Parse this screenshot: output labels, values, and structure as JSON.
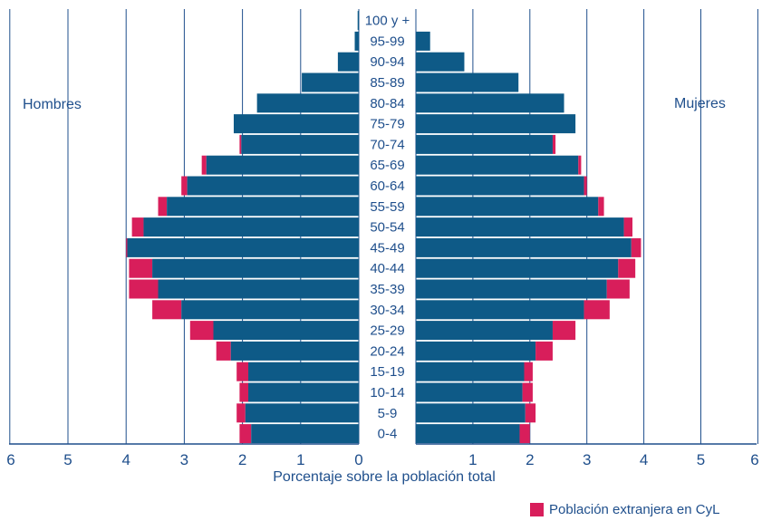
{
  "chart_data": {
    "type": "bar",
    "subtype": "population-pyramid",
    "xlabel": "Porcentaje sobre la población total",
    "left_label": "Hombres",
    "right_label": "Mujeres",
    "xlim": [
      0,
      6
    ],
    "ticks": [
      6,
      5,
      4,
      3,
      2,
      1,
      0,
      1,
      2,
      3,
      4,
      5,
      6
    ],
    "categories": [
      "0-4",
      "5-9",
      "10-14",
      "15-19",
      "20-24",
      "25-29",
      "30-34",
      "35-39",
      "40-44",
      "45-49",
      "50-54",
      "55-59",
      "60-64",
      "65-69",
      "70-74",
      "75-79",
      "80-84",
      "85-89",
      "90-94",
      "95-99",
      "100 y +"
    ],
    "series": [
      {
        "name": "Hombres",
        "total": [
          2.05,
          2.1,
          2.05,
          2.1,
          2.45,
          2.9,
          3.55,
          3.95,
          3.95,
          4.0,
          3.9,
          3.45,
          3.05,
          2.7,
          2.05,
          2.15,
          1.75,
          0.98,
          0.36,
          0.07,
          0.02
        ],
        "native": [
          1.85,
          1.95,
          1.9,
          1.9,
          2.2,
          2.5,
          3.05,
          3.45,
          3.55,
          3.98,
          3.7,
          3.3,
          2.95,
          2.62,
          2.02,
          2.15,
          1.75,
          0.98,
          0.36,
          0.07,
          0.02
        ]
      },
      {
        "name": "Mujeres",
        "total": [
          2.0,
          2.1,
          2.05,
          2.05,
          2.4,
          2.8,
          3.4,
          3.75,
          3.85,
          3.95,
          3.8,
          3.3,
          3.0,
          2.9,
          2.45,
          2.8,
          2.6,
          1.8,
          0.85,
          0.25,
          0.0
        ],
        "native": [
          1.82,
          1.92,
          1.87,
          1.9,
          2.1,
          2.4,
          2.95,
          3.35,
          3.55,
          3.78,
          3.65,
          3.2,
          2.95,
          2.85,
          2.4,
          2.8,
          2.6,
          1.8,
          0.85,
          0.25,
          0.0
        ]
      }
    ],
    "legend": [
      {
        "label": "Población extranjera en CyL",
        "color": "#d81e5b"
      }
    ],
    "legend_position": "bottom-right",
    "grid": true,
    "colors": {
      "native": "#0e5a87",
      "foreign": "#d81e5b",
      "grid": "#1f4f8c",
      "text": "#1f4f8c"
    }
  }
}
